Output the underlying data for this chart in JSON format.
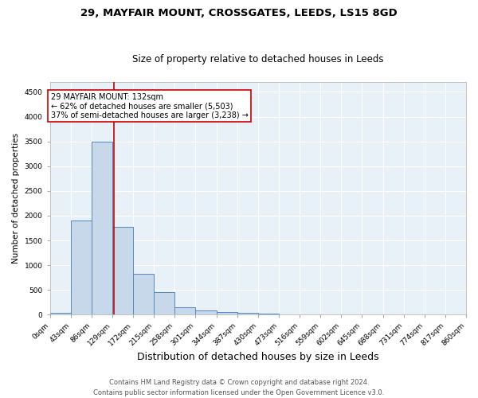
{
  "title1": "29, MAYFAIR MOUNT, CROSSGATES, LEEDS, LS15 8GD",
  "title2": "Size of property relative to detached houses in Leeds",
  "xlabel": "Distribution of detached houses by size in Leeds",
  "ylabel": "Number of detached properties",
  "bar_edges": [
    0,
    43,
    86,
    129,
    172,
    215,
    258,
    301,
    344,
    387,
    430,
    473,
    516,
    559,
    602,
    645,
    688,
    731,
    774,
    817,
    860
  ],
  "bar_heights": [
    30,
    1900,
    3500,
    1780,
    830,
    450,
    155,
    90,
    50,
    30,
    25,
    10,
    0,
    0,
    0,
    0,
    0,
    0,
    0,
    0
  ],
  "bar_color": "#c8d8eb",
  "bar_edgecolor": "#5588bb",
  "bar_linewidth": 0.7,
  "vline_x": 132,
  "vline_color": "#cc0000",
  "vline_linewidth": 1.2,
  "annotation_text": "29 MAYFAIR MOUNT: 132sqm\n← 62% of detached houses are smaller (5,503)\n37% of semi-detached houses are larger (3,238) →",
  "annotation_box_facecolor": "#ffffff",
  "annotation_box_edgecolor": "#cc0000",
  "ylim": [
    0,
    4700
  ],
  "xlim": [
    0,
    860
  ],
  "tick_labels": [
    "0sqm",
    "43sqm",
    "86sqm",
    "129sqm",
    "172sqm",
    "215sqm",
    "258sqm",
    "301sqm",
    "344sqm",
    "387sqm",
    "430sqm",
    "473sqm",
    "516sqm",
    "559sqm",
    "602sqm",
    "645sqm",
    "688sqm",
    "731sqm",
    "774sqm",
    "817sqm",
    "860sqm"
  ],
  "yticks": [
    0,
    500,
    1000,
    1500,
    2000,
    2500,
    3000,
    3500,
    4000,
    4500
  ],
  "background_color": "#e8f0f8",
  "grid_color": "#ffffff",
  "fig_background": "#ffffff",
  "footer1": "Contains HM Land Registry data © Crown copyright and database right 2024.",
  "footer2": "Contains public sector information licensed under the Open Government Licence v3.0.",
  "title1_fontsize": 9.5,
  "title2_fontsize": 8.5,
  "xlabel_fontsize": 9,
  "ylabel_fontsize": 7.5,
  "tick_fontsize": 6.5,
  "footer_fontsize": 6,
  "annotation_fontsize": 7
}
